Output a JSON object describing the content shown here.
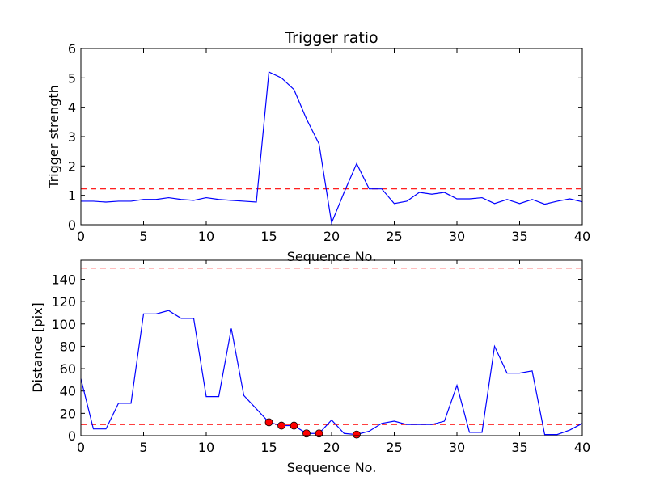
{
  "chart_data": [
    {
      "type": "line",
      "title": "Trigger ratio",
      "xlabel": "Sequence No.",
      "ylabel": "Trigger strength",
      "xlim": [
        0,
        40
      ],
      "ylim": [
        0,
        6
      ],
      "xticks": [
        0,
        5,
        10,
        15,
        20,
        25,
        30,
        35,
        40
      ],
      "yticks": [
        0,
        1,
        2,
        3,
        4,
        5,
        6
      ],
      "grid": false,
      "line_color": "#0000ff",
      "threshold_color": "#ff0000",
      "x": [
        0,
        1,
        2,
        3,
        4,
        5,
        6,
        7,
        8,
        9,
        10,
        11,
        12,
        13,
        14,
        15,
        16,
        17,
        18,
        19,
        20,
        21,
        22,
        23,
        24,
        25,
        26,
        27,
        28,
        29,
        30,
        31,
        32,
        33,
        34,
        35,
        36,
        37,
        38,
        39,
        40
      ],
      "values": [
        0.8,
        0.8,
        0.77,
        0.8,
        0.8,
        0.86,
        0.86,
        0.92,
        0.86,
        0.83,
        0.92,
        0.86,
        0.83,
        0.8,
        0.77,
        5.2,
        5.0,
        4.6,
        3.6,
        2.75,
        0.06,
        1.1,
        2.08,
        1.22,
        1.22,
        0.72,
        0.8,
        1.1,
        1.04,
        1.1,
        0.88,
        0.88,
        0.92,
        0.72,
        0.86,
        0.72,
        0.86,
        0.7,
        0.8,
        0.88,
        0.78
      ],
      "thresholds": [
        1.22
      ]
    },
    {
      "type": "line",
      "title": "",
      "xlabel": "Sequence No.",
      "ylabel": "Distance [pix]",
      "xlim": [
        0,
        40
      ],
      "ylim": [
        0,
        157
      ],
      "xticks": [
        0,
        5,
        10,
        15,
        20,
        25,
        30,
        35,
        40
      ],
      "yticks": [
        0,
        20,
        40,
        60,
        80,
        100,
        120,
        140
      ],
      "grid": false,
      "line_color": "#0000ff",
      "threshold_color": "#ff0000",
      "marker_color": "#ff0000",
      "x": [
        0,
        1,
        2,
        3,
        4,
        5,
        6,
        7,
        8,
        9,
        10,
        11,
        12,
        13,
        14,
        15,
        16,
        17,
        18,
        19,
        20,
        21,
        22,
        23,
        24,
        25,
        26,
        27,
        28,
        29,
        30,
        31,
        32,
        33,
        34,
        35,
        36,
        37,
        38,
        39,
        40
      ],
      "values": [
        51,
        6,
        6,
        29,
        29,
        109,
        109,
        112,
        105,
        105,
        35,
        35,
        96,
        36,
        24,
        12,
        9,
        9,
        2,
        2,
        14,
        2,
        1,
        4,
        11,
        13,
        10,
        10,
        10,
        13,
        45,
        3,
        3,
        80,
        56,
        56,
        58,
        1,
        1,
        5,
        11
      ],
      "thresholds": [
        10,
        150
      ],
      "markers": {
        "x": [
          15,
          16,
          17,
          18,
          19,
          22
        ],
        "y": [
          12,
          9,
          9,
          2,
          2,
          1
        ]
      }
    }
  ]
}
